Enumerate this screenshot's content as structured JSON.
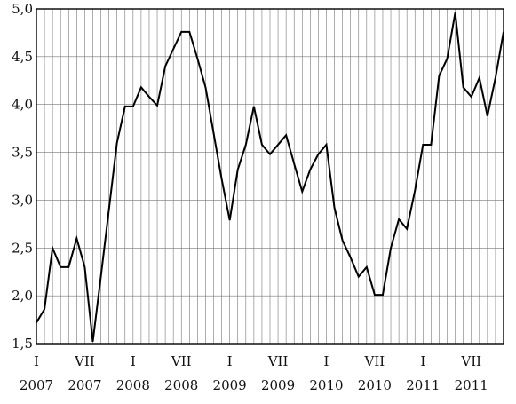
{
  "chart_data": {
    "type": "line",
    "title": "",
    "xlabel": "",
    "ylabel": "",
    "ylim": [
      1.5,
      5.0
    ],
    "y_ticks": [
      "1,5",
      "2,0",
      "2,5",
      "3,0",
      "3,5",
      "4,0",
      "4,5",
      "5,0"
    ],
    "grid": "vertical lines at each month, horizontal lines at each 0.5",
    "x_ticks": [
      {
        "month_index": 0,
        "roman": "I",
        "year": "2007"
      },
      {
        "month_index": 6,
        "roman": "VII",
        "year": "2007"
      },
      {
        "month_index": 12,
        "roman": "I",
        "year": "2008"
      },
      {
        "month_index": 18,
        "roman": "VII",
        "year": "2008"
      },
      {
        "month_index": 24,
        "roman": "I",
        "year": "2009"
      },
      {
        "month_index": 30,
        "roman": "VII",
        "year": "2009"
      },
      {
        "month_index": 36,
        "roman": "I",
        "year": "2010"
      },
      {
        "month_index": 42,
        "roman": "VII",
        "year": "2010"
      },
      {
        "month_index": 48,
        "roman": "I",
        "year": "2011"
      },
      {
        "month_index": 54,
        "roman": "VII",
        "year": "2011"
      }
    ],
    "months": 59,
    "values": [
      1.72,
      1.86,
      2.5,
      2.3,
      2.3,
      2.6,
      2.3,
      1.52,
      2.2,
      2.9,
      3.6,
      3.98,
      3.98,
      4.18,
      4.08,
      3.99,
      4.4,
      4.58,
      4.76,
      4.76,
      4.48,
      4.18,
      3.7,
      3.22,
      2.79,
      3.32,
      3.58,
      3.98,
      3.58,
      3.48,
      3.58,
      3.68,
      3.38,
      3.09,
      3.32,
      3.48,
      3.58,
      2.92,
      2.58,
      2.4,
      2.2,
      2.3,
      2.01,
      2.01,
      2.5,
      2.8,
      2.7,
      3.1,
      3.58,
      3.58,
      4.3,
      4.48,
      4.96,
      4.18,
      4.08,
      4.28,
      3.88,
      4.28,
      4.76
    ]
  }
}
